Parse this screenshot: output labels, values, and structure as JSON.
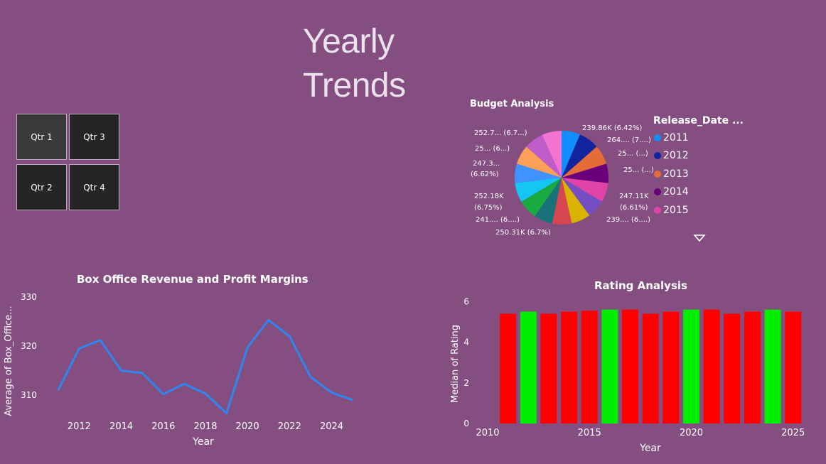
{
  "page": {
    "title_line1": "Yearly",
    "title_line2": "Trends"
  },
  "slicer": {
    "buttons": [
      "Qtr 1",
      "Qtr 3",
      "Qtr 2",
      "Qtr 4"
    ],
    "selected": "Qtr 1"
  },
  "budget": {
    "title": "Budget Analysis",
    "slice_labels": [
      "239.86K (6.42%)",
      "264.... (7....)",
      "25... (...)",
      "25... (...)",
      "247.11K",
      "(6.61%)",
      "239.... (6....)",
      "250.31K (6.7%)",
      "241.... (6....)",
      "252.18K",
      "(6.75%)",
      "247.3...",
      "(6.62%)",
      "25... (6...)",
      "252.7... (6.7...)"
    ],
    "legend_title": "Release_Date ...",
    "legend_items": [
      {
        "label": "2011",
        "color": "#118dff"
      },
      {
        "label": "2012",
        "color": "#12239e"
      },
      {
        "label": "2013",
        "color": "#e66c37"
      },
      {
        "label": "2014",
        "color": "#6b007b"
      },
      {
        "label": "2015",
        "color": "#e044a7"
      }
    ],
    "legend_more_icon": "triangle-down-icon"
  },
  "chart_data": [
    {
      "type": "pie",
      "title": "Budget Analysis",
      "legend_title": "Release_Date ...",
      "legend_position": "right",
      "slices": [
        {
          "value": 239.86,
          "percent": 6.42,
          "color": "#118dff"
        },
        {
          "value": 264.0,
          "percent": 7.07,
          "color": "#12239e"
        },
        {
          "value": 250.0,
          "percent": 6.7,
          "color": "#e66c37"
        },
        {
          "value": 250.0,
          "percent": 6.7,
          "color": "#6b007b"
        },
        {
          "value": 247.11,
          "percent": 6.61,
          "color": "#e044a7"
        },
        {
          "value": 239.0,
          "percent": 6.4,
          "color": "#744ec2"
        },
        {
          "value": 247.0,
          "percent": 6.62,
          "color": "#d9b300"
        },
        {
          "value": 250.31,
          "percent": 6.7,
          "color": "#d64550"
        },
        {
          "value": 241.0,
          "percent": 6.45,
          "color": "#197278"
        },
        {
          "value": 252.0,
          "percent": 6.75,
          "color": "#1aab40"
        },
        {
          "value": 252.18,
          "percent": 6.75,
          "color": "#15c6f4"
        },
        {
          "value": 247.3,
          "percent": 6.62,
          "color": "#4092ff"
        },
        {
          "value": 250.0,
          "percent": 6.7,
          "color": "#ffa058"
        },
        {
          "value": 252.0,
          "percent": 6.75,
          "color": "#be5dc9"
        },
        {
          "value": 252.7,
          "percent": 6.77,
          "color": "#f472d0"
        }
      ]
    },
    {
      "type": "line",
      "title": "Box Office Revenue and Profit Margins",
      "xlabel": "Year",
      "ylabel": "Average of Box_Office...",
      "x": [
        2011,
        2012,
        2013,
        2014,
        2015,
        2016,
        2017,
        2018,
        2019,
        2020,
        2021,
        2022,
        2023,
        2024,
        2025
      ],
      "series": [
        {
          "values": [
            311,
            319.5,
            321.2,
            315,
            314.5,
            310.2,
            312.3,
            310.3,
            306.3,
            319.7,
            325.3,
            322,
            313.7,
            310.5,
            309
          ]
        }
      ],
      "xticks": [
        2012,
        2014,
        2016,
        2018,
        2020,
        2022,
        2024
      ],
      "yticks": [
        310,
        320,
        330
      ],
      "xlim": [
        2010.5,
        2025.3
      ],
      "ylim": [
        304.5,
        330
      ],
      "color": "#2f86f0"
    },
    {
      "type": "bar",
      "title": "Rating Analysis",
      "xlabel": "Year",
      "ylabel": "Median of Rating",
      "x": [
        2011,
        2012,
        2013,
        2014,
        2015,
        2016,
        2017,
        2018,
        2019,
        2020,
        2021,
        2022,
        2023,
        2024,
        2025
      ],
      "values": [
        5.4,
        5.5,
        5.4,
        5.5,
        5.55,
        5.6,
        5.6,
        5.4,
        5.5,
        5.6,
        5.6,
        5.4,
        5.5,
        5.6,
        5.5
      ],
      "colors": [
        "#ff0000",
        "#00ee00",
        "#ff0000",
        "#ff0000",
        "#ff0000",
        "#00ee00",
        "#ff0000",
        "#ff0000",
        "#ff0000",
        "#00ee00",
        "#ff0000",
        "#ff0000",
        "#ff0000",
        "#00ee00",
        "#ff0000"
      ],
      "xticks": [
        2010,
        2015,
        2020,
        2025
      ],
      "yticks": [
        0,
        2,
        4,
        6
      ],
      "xlim": [
        2010,
        2025.5
      ],
      "ylim": [
        0,
        6.15
      ]
    }
  ]
}
